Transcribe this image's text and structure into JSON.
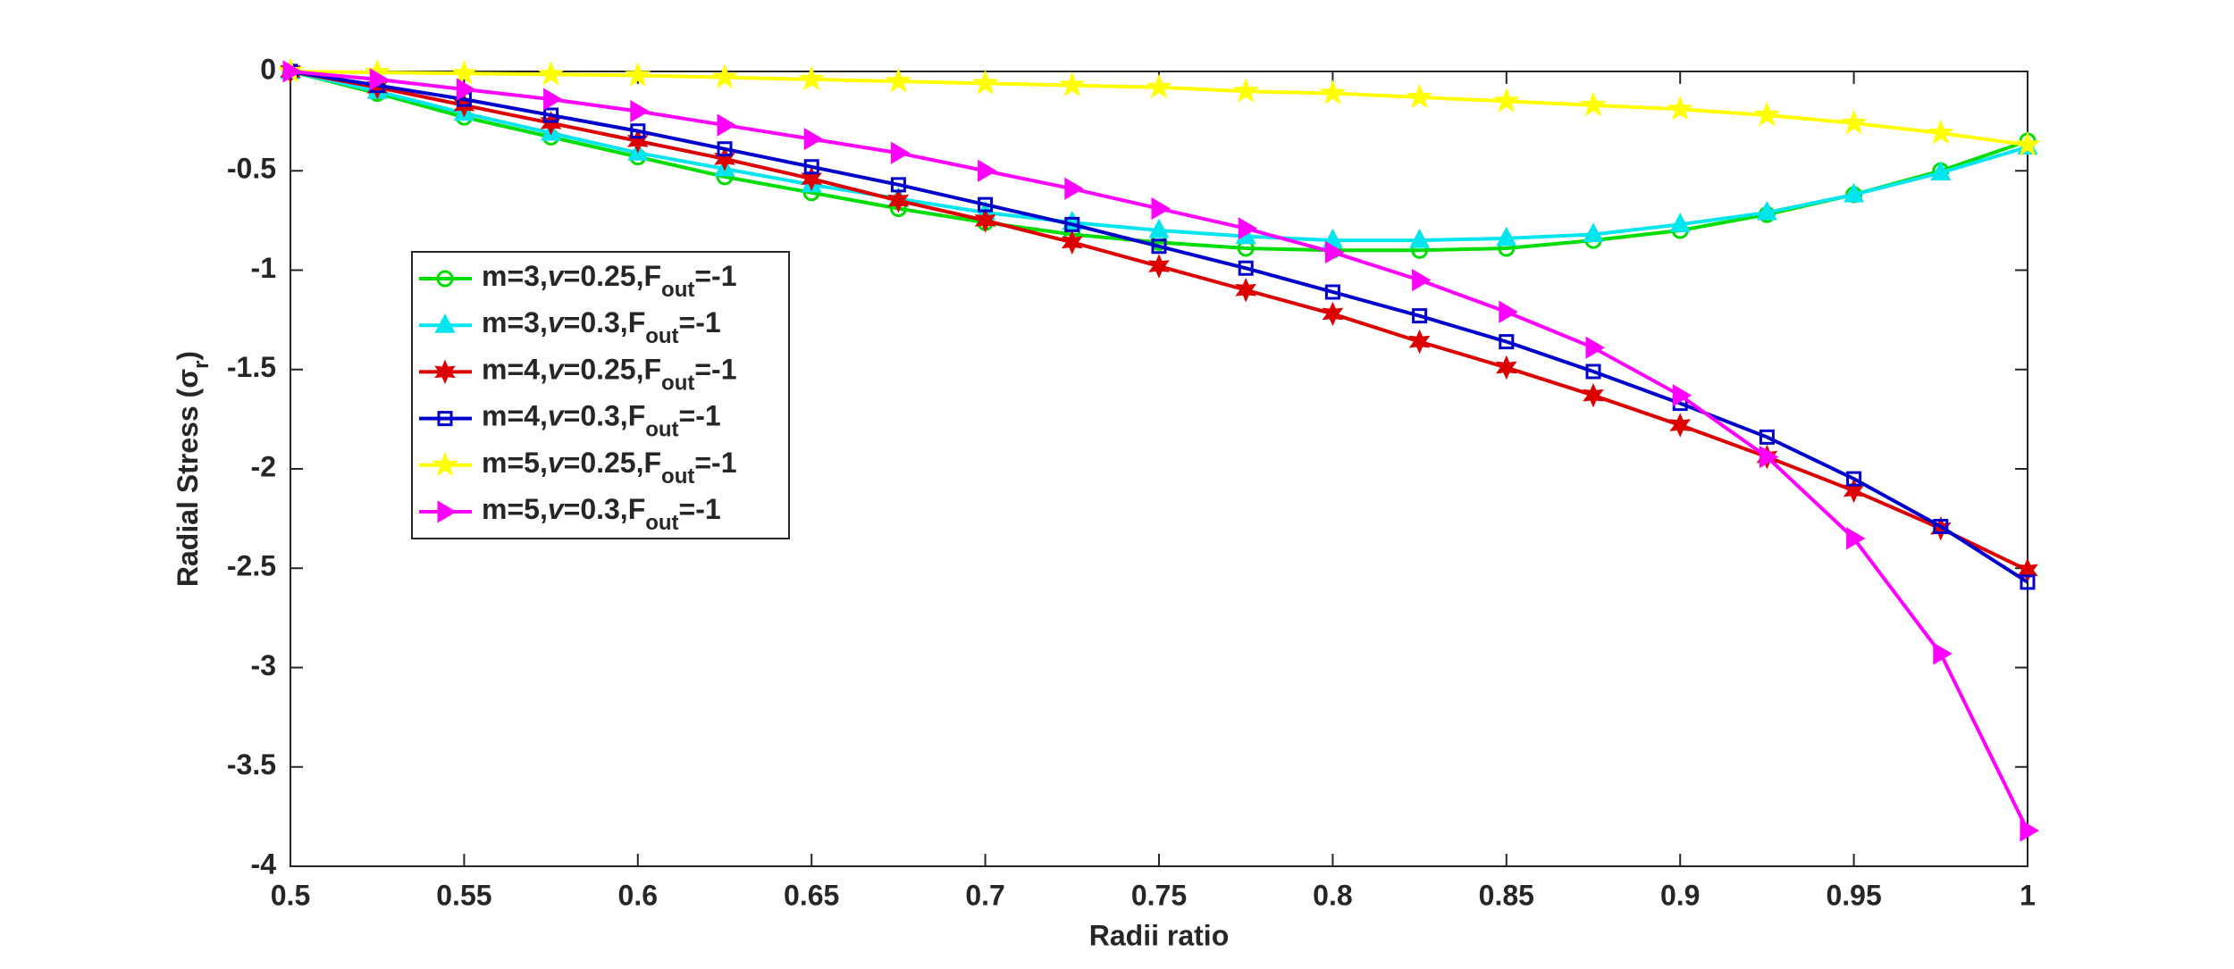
{
  "chart_data": {
    "type": "line",
    "xlabel": "Radii ratio",
    "ylabel": "Radial  Stress  (σr)",
    "x": [
      0.5,
      0.525,
      0.55,
      0.575,
      0.6,
      0.625,
      0.65,
      0.675,
      0.7,
      0.725,
      0.75,
      0.775,
      0.8,
      0.825,
      0.85,
      0.875,
      0.9,
      0.925,
      0.95,
      0.975,
      1
    ],
    "xlim": [
      0.5,
      1
    ],
    "xticks": [
      0.5,
      0.55,
      0.6,
      0.65,
      0.7,
      0.75,
      0.8,
      0.85,
      0.9,
      0.95,
      1
    ],
    "ylim": [
      -4,
      0
    ],
    "yticks": [
      -4,
      -3.5,
      -3,
      -2.5,
      -2,
      -1.5,
      -1,
      -0.5,
      0
    ],
    "legend": "left",
    "series": [
      {
        "name": "m=3,v=0.25,Fout=-1",
        "color": "#00dd00",
        "marker": "circle",
        "values": [
          0,
          -0.11,
          -0.23,
          -0.33,
          -0.43,
          -0.53,
          -0.61,
          -0.69,
          -0.76,
          -0.82,
          -0.86,
          -0.89,
          -0.9,
          -0.9,
          -0.89,
          -0.85,
          -0.8,
          -0.72,
          -0.62,
          -0.5,
          -0.35
        ]
      },
      {
        "name": "m=3,v=0.3,Fout=-1",
        "color": "#00e5ee",
        "marker": "triangle-up",
        "values": [
          0,
          -0.1,
          -0.21,
          -0.31,
          -0.41,
          -0.49,
          -0.57,
          -0.64,
          -0.71,
          -0.76,
          -0.8,
          -0.83,
          -0.85,
          -0.85,
          -0.84,
          -0.82,
          -0.77,
          -0.71,
          -0.62,
          -0.51,
          -0.38
        ]
      },
      {
        "name": "m=4,v=0.25,Fout=-1",
        "color": "#dd0000",
        "marker": "star6",
        "values": [
          0,
          -0.08,
          -0.17,
          -0.26,
          -0.35,
          -0.44,
          -0.54,
          -0.65,
          -0.75,
          -0.86,
          -0.98,
          -1.1,
          -1.22,
          -1.36,
          -1.49,
          -1.63,
          -1.78,
          -1.94,
          -2.11,
          -2.3,
          -2.51
        ]
      },
      {
        "name": "m=4,v=0.3,Fout=-1",
        "color": "#0000cc",
        "marker": "square",
        "values": [
          0,
          -0.07,
          -0.14,
          -0.22,
          -0.3,
          -0.39,
          -0.48,
          -0.57,
          -0.67,
          -0.77,
          -0.88,
          -0.99,
          -1.11,
          -1.23,
          -1.36,
          -1.51,
          -1.67,
          -1.84,
          -2.05,
          -2.29,
          -2.57
        ]
      },
      {
        "name": "m=5,v=0.25,Fout=-1",
        "color": "#ffff00",
        "marker": "star5",
        "values": [
          0,
          -0.005,
          -0.01,
          -0.015,
          -0.02,
          -0.03,
          -0.04,
          -0.05,
          -0.06,
          -0.07,
          -0.08,
          -0.1,
          -0.11,
          -0.13,
          -0.15,
          -0.17,
          -0.19,
          -0.22,
          -0.26,
          -0.31,
          -0.37
        ]
      },
      {
        "name": "m=5,v=0.3,Fout=-1",
        "color": "#ff00ff",
        "marker": "triangle-right",
        "values": [
          0,
          -0.04,
          -0.09,
          -0.14,
          -0.2,
          -0.27,
          -0.34,
          -0.41,
          -0.5,
          -0.59,
          -0.69,
          -0.79,
          -0.91,
          -1.05,
          -1.21,
          -1.39,
          -1.63,
          -1.94,
          -2.35,
          -2.93,
          -3.82
        ]
      }
    ]
  }
}
